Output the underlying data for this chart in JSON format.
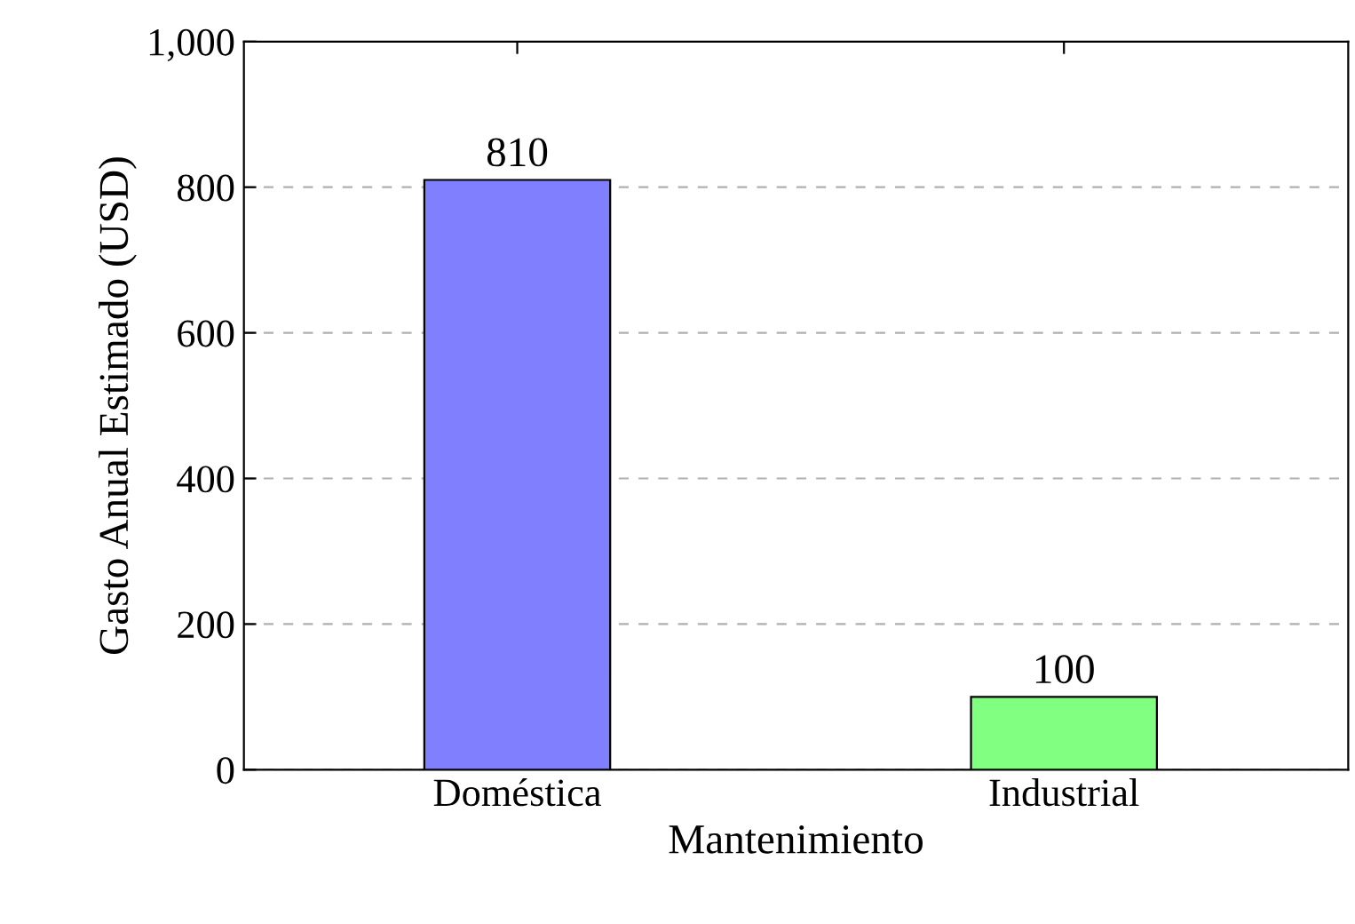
{
  "chart_data": {
    "type": "bar",
    "xlabel": "Mantenimiento",
    "ylabel": "Gasto Anual Estimado (USD)",
    "categories": [
      "Doméstica",
      "Industrial"
    ],
    "values": [
      810,
      100
    ],
    "colors": [
      "#8080ff",
      "#80ff80"
    ],
    "ylim": [
      0,
      1000
    ],
    "yticks": [
      0,
      200,
      400,
      600,
      800,
      {
        "value": 1000,
        "label": "1,000"
      }
    ],
    "grid": "y",
    "data_labels": true
  }
}
